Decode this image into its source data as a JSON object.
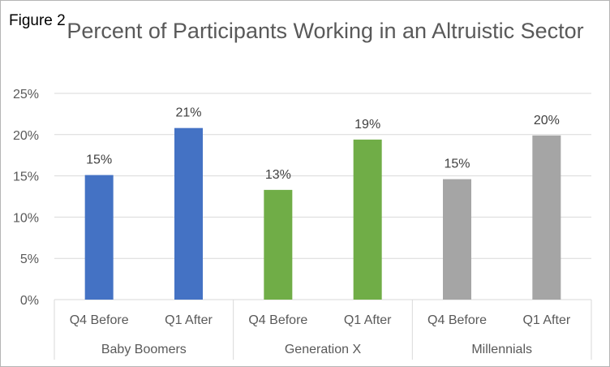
{
  "figure_label": "Figure 2",
  "chart_data": {
    "type": "bar",
    "title": "Percent of Participants Working in an Altruistic Sector",
    "xlabel": "",
    "ylabel": "",
    "ylim": [
      0,
      25
    ],
    "y_ticks": [
      "0%",
      "5%",
      "10%",
      "15%",
      "20%",
      "25%"
    ],
    "grid": true,
    "groups": [
      {
        "name": "Baby Boomers",
        "color": "#4472c4",
        "bars": [
          {
            "label": "Q4 Before",
            "value": 15.1,
            "data_label": "15%"
          },
          {
            "label": "Q1 After",
            "value": 20.8,
            "data_label": "21%"
          }
        ]
      },
      {
        "name": "Generation X",
        "color": "#70ad47",
        "bars": [
          {
            "label": "Q4 Before",
            "value": 13.3,
            "data_label": "13%"
          },
          {
            "label": "Q1 After",
            "value": 19.4,
            "data_label": "19%"
          }
        ]
      },
      {
        "name": "Millennials",
        "color": "#a5a5a5",
        "bars": [
          {
            "label": "Q4 Before",
            "value": 14.6,
            "data_label": "15%"
          },
          {
            "label": "Q1 After",
            "value": 19.9,
            "data_label": "20%"
          }
        ]
      }
    ]
  }
}
